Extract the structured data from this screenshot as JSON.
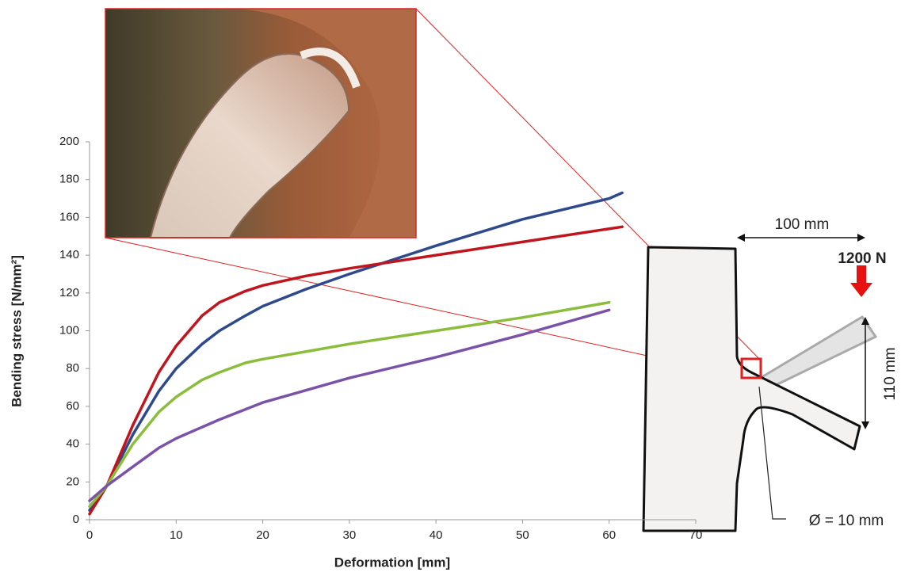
{
  "chart_data": {
    "type": "line",
    "x_label": "Deformation  [mm]",
    "y_label": "Bending stress [N/mm²]",
    "xlim": [
      0,
      70
    ],
    "xticks": [
      0,
      10,
      20,
      30,
      40,
      50,
      60,
      70
    ],
    "ylim": [
      0,
      200
    ],
    "yticks": [
      0,
      20,
      40,
      60,
      80,
      100,
      120,
      140,
      160,
      180,
      200
    ],
    "grid": false,
    "series": [
      {
        "color": "#2e4a8c",
        "x": [
          0,
          2,
          5,
          8,
          10,
          13,
          15,
          18,
          20,
          25,
          30,
          40,
          50,
          60,
          61.5
        ],
        "values": [
          5,
          18,
          45,
          68,
          80,
          93,
          100,
          108,
          113,
          122,
          130,
          145,
          159,
          170,
          173
        ]
      },
      {
        "color": "#c0141e",
        "x": [
          0,
          2,
          5,
          8,
          10,
          13,
          15,
          18,
          20,
          25,
          30,
          40,
          50,
          61.5
        ],
        "values": [
          3,
          18,
          50,
          78,
          92,
          108,
          115,
          121,
          124,
          129,
          133,
          140,
          147,
          155
        ]
      },
      {
        "color": "#8bbd3c",
        "x": [
          0,
          2,
          5,
          8,
          10,
          13,
          15,
          18,
          20,
          30,
          40,
          50,
          60
        ],
        "values": [
          7,
          18,
          40,
          57,
          65,
          74,
          78,
          83,
          85,
          93,
          100,
          107,
          115
        ]
      },
      {
        "color": "#7a52a8",
        "x": [
          0,
          2,
          5,
          8,
          10,
          15,
          20,
          30,
          40,
          50,
          60
        ],
        "values": [
          10,
          18,
          28,
          38,
          43,
          53,
          62,
          75,
          86,
          98,
          111
        ]
      }
    ],
    "annotations": [
      "100 mm",
      "1200 N",
      "110 mm",
      "Ø = 10 mm"
    ]
  }
}
